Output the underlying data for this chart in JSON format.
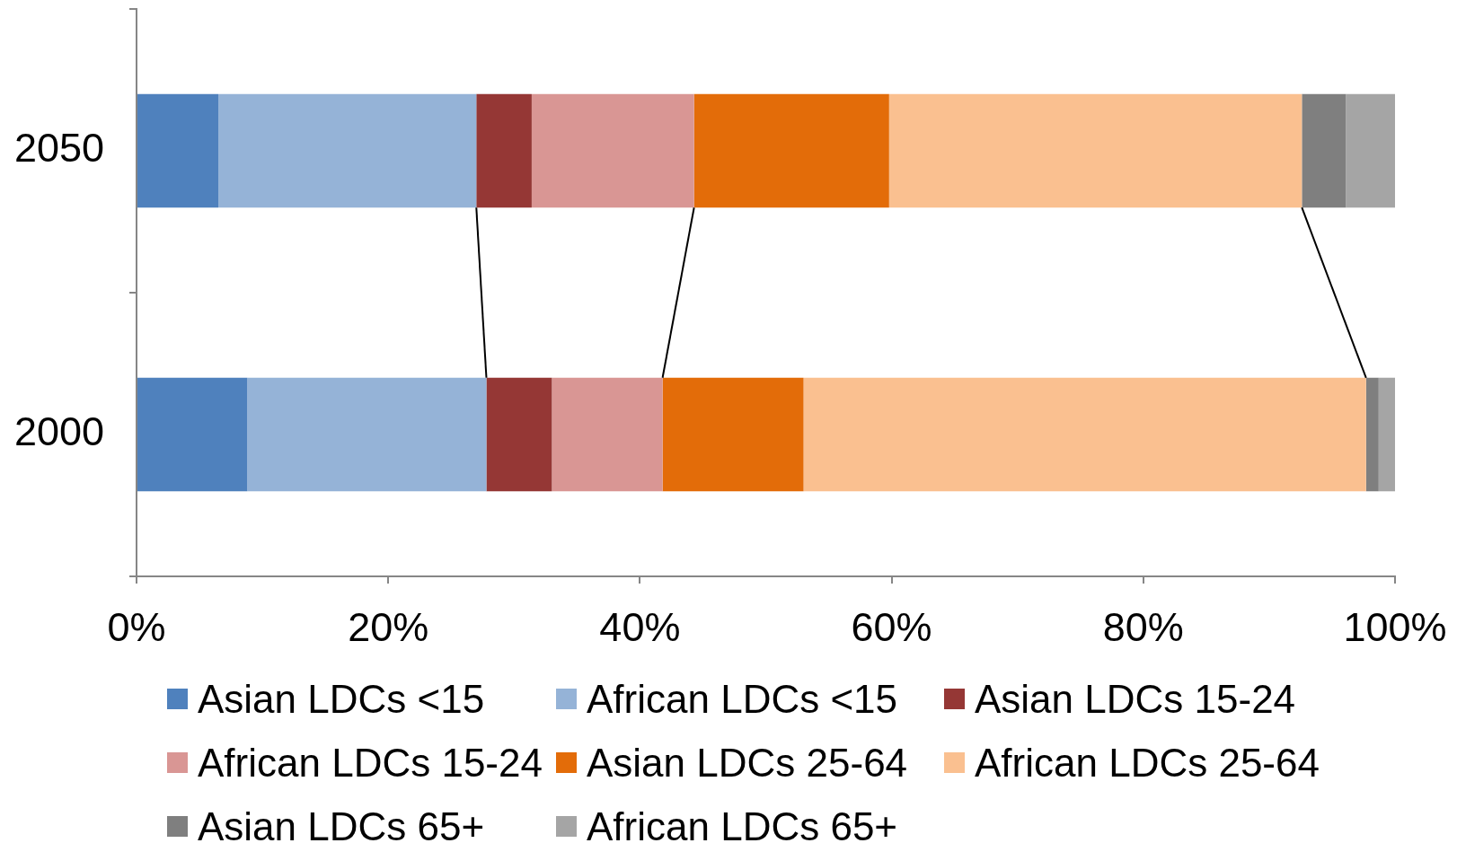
{
  "chart_data": {
    "type": "bar",
    "orientation": "horizontal",
    "stacked": true,
    "grid": false,
    "legend": "bottom",
    "categories": [
      "2050",
      "2000"
    ],
    "series": [
      {
        "name": "Asian LDCs <15",
        "color": "#4f81bd",
        "values": [
          6.5,
          8.8
        ]
      },
      {
        "name": "African LDCs <15",
        "color": "#95b3d7",
        "values": [
          20.5,
          19.0
        ]
      },
      {
        "name": "Asian LDCs 15-24",
        "color": "#953735",
        "values": [
          4.4,
          5.2
        ]
      },
      {
        "name": "African LDCs 15-24",
        "color": "#d99694",
        "values": [
          12.9,
          8.8
        ]
      },
      {
        "name": "Asian LDCs 25-64",
        "color": "#e36c09",
        "values": [
          15.5,
          11.2
        ]
      },
      {
        "name": "African LDCs 25-64",
        "color": "#fac090",
        "values": [
          32.8,
          44.7
        ]
      },
      {
        "name": "Asian LDCs 65+",
        "color": "#7f7f7f",
        "values": [
          3.5,
          1.0
        ]
      },
      {
        "name": "African LDCs 65+",
        "color": "#a5a5a5",
        "values": [
          3.9,
          1.3
        ]
      }
    ],
    "xlim": [
      0,
      100
    ],
    "xticks": [
      {
        "value": 0,
        "label": "0%"
      },
      {
        "value": 20,
        "label": "20%"
      },
      {
        "value": 40,
        "label": "40%"
      },
      {
        "value": 60,
        "label": "60%"
      },
      {
        "value": 80,
        "label": "80%"
      },
      {
        "value": 100,
        "label": "100%"
      }
    ]
  }
}
